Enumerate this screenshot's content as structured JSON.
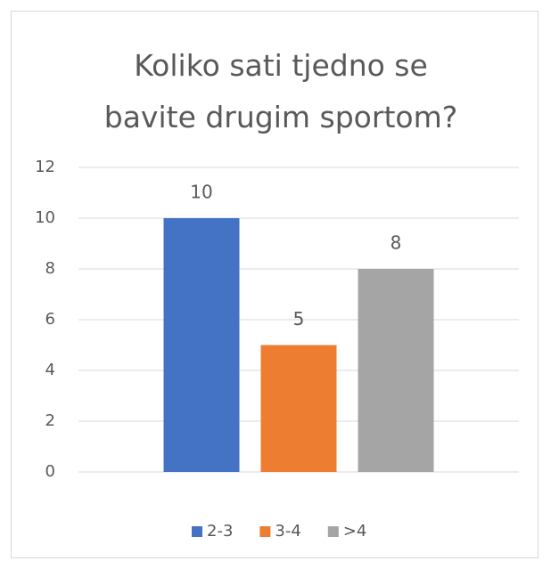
{
  "chart_data": {
    "type": "bar",
    "title": "Koliko sati tjedno se bavite drugim sportom?",
    "categories": [
      null
    ],
    "series": [
      {
        "name": "2-3",
        "color": "#4472c4",
        "values": [
          10
        ]
      },
      {
        "name": "3-4",
        "color": "#ed7d31",
        "values": [
          5
        ]
      },
      {
        "name": ">4",
        "color": "#a5a5a5",
        "values": [
          8
        ]
      }
    ],
    "ylim": [
      0,
      12
    ],
    "yticks": [
      0,
      2,
      4,
      6,
      8,
      10,
      12
    ],
    "grid": true,
    "legend": "bottom"
  }
}
